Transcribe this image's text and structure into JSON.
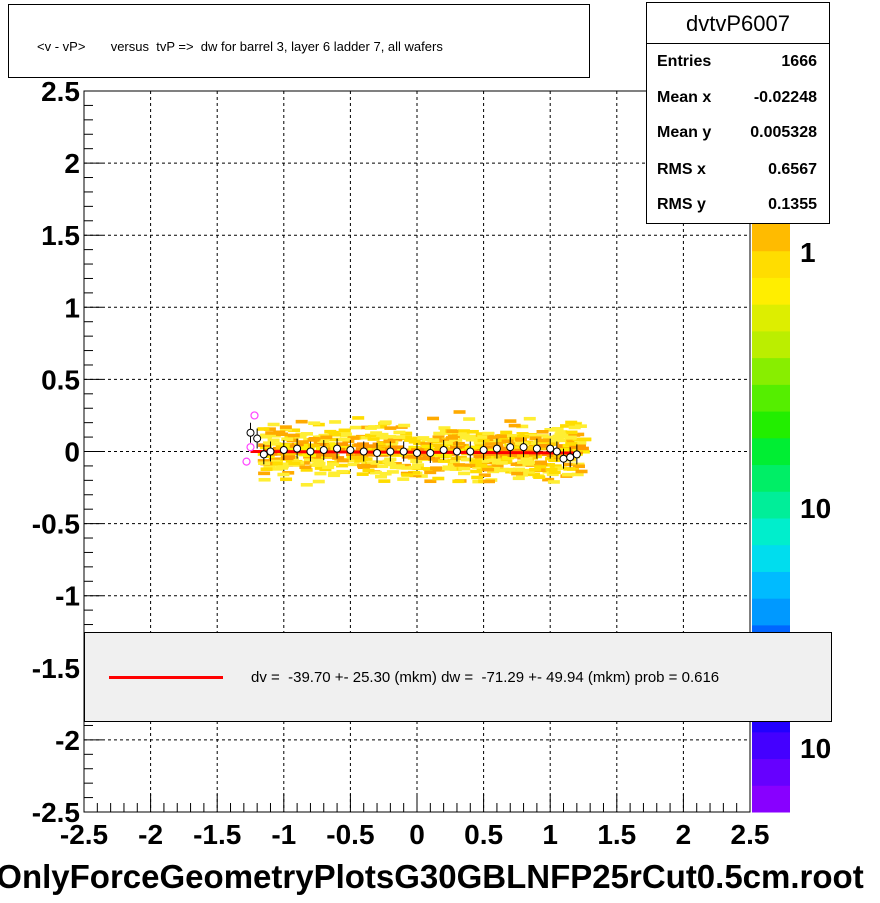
{
  "title": "<v - vP>       versus  tvP =>  dw for barrel 3, layer 6 ladder 7, all wafers",
  "stats": {
    "name": "dvtvP6007",
    "rows": [
      {
        "label": "Entries",
        "value": "1666"
      },
      {
        "label": "Mean x",
        "value": "-0.02248"
      },
      {
        "label": "Mean y",
        "value": "0.005328"
      },
      {
        "label": "RMS x",
        "value": "0.6567"
      },
      {
        "label": "RMS y",
        "value": "0.1355"
      }
    ]
  },
  "legend": {
    "text": "dv =  -39.70 +- 25.30 (mkm) dw =  -71.29 +- 49.94 (mkm) prob = 0.616",
    "line_color": "#ff0000"
  },
  "footer": "OnlyForceGeometryPlotsG30GBLNFP25rCut0.5cm.root",
  "colors": {
    "fit_line": "#ff0000",
    "grid": "#000000",
    "frame": "#000000"
  },
  "chart_data": {
    "type": "scatter",
    "xlim": [
      -2.5,
      2.5
    ],
    "ylim": [
      -2.5,
      2.5
    ],
    "x_ticks": [
      "-2.5",
      "-2",
      "-1.5",
      "-1",
      "-0.5",
      "0",
      "0.5",
      "1",
      "1.5",
      "2",
      "2.5"
    ],
    "y_ticks": [
      "-2.5",
      "-2",
      "-1.5",
      "-1",
      "-0.5",
      "0",
      "0.5",
      "1",
      "1.5",
      "2",
      "2.5"
    ],
    "grid": true,
    "palette_labels": [
      "1",
      "10",
      "10"
    ],
    "profile": {
      "x": [
        -1.25,
        -1.2,
        -1.15,
        -1.1,
        -1.0,
        -0.9,
        -0.8,
        -0.7,
        -0.6,
        -0.5,
        -0.4,
        -0.3,
        -0.2,
        -0.1,
        0.0,
        0.1,
        0.2,
        0.3,
        0.4,
        0.5,
        0.6,
        0.7,
        0.8,
        0.9,
        1.0,
        1.05,
        1.1,
        1.15,
        1.2
      ],
      "y": [
        0.13,
        0.09,
        -0.02,
        0.0,
        0.01,
        0.02,
        0.0,
        0.01,
        0.02,
        0.01,
        0.0,
        -0.01,
        0.0,
        0.0,
        -0.01,
        -0.01,
        0.01,
        0.0,
        0.0,
        0.01,
        0.02,
        0.03,
        0.03,
        0.02,
        0.02,
        0.0,
        -0.05,
        -0.04,
        -0.02
      ]
    },
    "outlier_points": {
      "x": [
        -1.28,
        -1.22,
        -1.25
      ],
      "y": [
        -0.07,
        0.25,
        0.03
      ]
    },
    "fit": {
      "x": [
        -1.25,
        1.2
      ],
      "y": [
        0.0,
        -0.01
      ]
    }
  }
}
